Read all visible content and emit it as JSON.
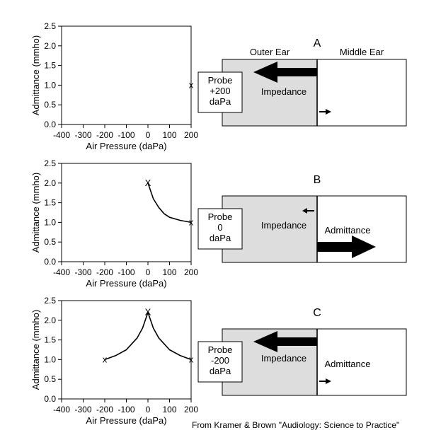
{
  "chart_data": [
    {
      "type": "line",
      "xlabel": "Air Pressure (daPa)",
      "ylabel": "Admittance (mmho)",
      "xlim": [
        -400,
        200
      ],
      "ylim": [
        0.0,
        2.5
      ],
      "x_ticks": [
        "-400",
        "-300",
        "-200",
        "-100",
        "0",
        "100",
        "200"
      ],
      "y_ticks": [
        "0.0",
        "0.5",
        "1.0",
        "1.5",
        "2.0",
        "2.5"
      ],
      "series": [
        {
          "x": [],
          "y": []
        }
      ],
      "markers": [
        {
          "label": "x",
          "x": 200,
          "y": 1.0
        }
      ]
    },
    {
      "type": "line",
      "xlabel": "Air Pressure (daPa)",
      "ylabel": "Admittance (mmho)",
      "xlim": [
        -400,
        200
      ],
      "ylim": [
        0.0,
        2.5
      ],
      "x_ticks": [
        "-400",
        "-300",
        "-200",
        "-100",
        "0",
        "100",
        "200"
      ],
      "y_ticks": [
        "0.0",
        "0.5",
        "1.0",
        "1.5",
        "2.0",
        "2.5"
      ],
      "series": [
        {
          "x": [
            0,
            25,
            50,
            75,
            100,
            150,
            200
          ],
          "y": [
            2.0,
            1.6,
            1.38,
            1.22,
            1.13,
            1.05,
            1.0
          ]
        }
      ],
      "markers": [
        {
          "label": "X",
          "x": 0,
          "y": 2.0
        },
        {
          "label": "x",
          "x": 200,
          "y": 1.0
        }
      ]
    },
    {
      "type": "line",
      "xlabel": "Air Pressure (daPa)",
      "ylabel": "Admittance (mmho)",
      "xlim": [
        -400,
        200
      ],
      "ylim": [
        0.0,
        2.5
      ],
      "x_ticks": [
        "-400",
        "-300",
        "-200",
        "-100",
        "0",
        "100",
        "200"
      ],
      "y_ticks": [
        "0.0",
        "0.5",
        "1.0",
        "1.5",
        "2.0",
        "2.5"
      ],
      "series": [
        {
          "x": [
            -200,
            -150,
            -100,
            -75,
            -50,
            -25,
            0,
            25,
            50,
            75,
            100,
            150,
            200
          ],
          "y": [
            1.0,
            1.1,
            1.25,
            1.4,
            1.55,
            1.8,
            2.2,
            1.8,
            1.55,
            1.4,
            1.25,
            1.1,
            1.0
          ]
        }
      ],
      "markers": [
        {
          "label": "x",
          "x": -200,
          "y": 1.0
        },
        {
          "label": "X",
          "x": 0,
          "y": 2.2
        },
        {
          "label": "x",
          "x": 200,
          "y": 1.0
        }
      ]
    }
  ],
  "diagrams": [
    {
      "letter": "A",
      "outer_label": "Outer Ear",
      "middle_label": "Middle Ear",
      "probe_lines": [
        "Probe",
        "+200",
        "daPa"
      ],
      "impedance_label": "Impedance",
      "admittance_label": "",
      "impedance_arrow": "large",
      "admittance_arrow": "small"
    },
    {
      "letter": "B",
      "outer_label": "",
      "middle_label": "",
      "probe_lines": [
        "Probe",
        "0",
        "daPa"
      ],
      "impedance_label": "Impedance",
      "admittance_label": "Admittance",
      "impedance_arrow": "small",
      "admittance_arrow": "large"
    },
    {
      "letter": "C",
      "outer_label": "",
      "middle_label": "",
      "probe_lines": [
        "Probe",
        "-200",
        "daPa"
      ],
      "impedance_label": "Impedance",
      "admittance_label": "Admittance",
      "impedance_arrow": "large",
      "admittance_arrow": "small"
    }
  ],
  "credit": "From Kramer & Brown \"Audiology: Science to Practice\"",
  "colors": {
    "outer_ear_fill": "#dddddd",
    "middle_ear_fill": "#ffffff",
    "ink": "#000000"
  }
}
